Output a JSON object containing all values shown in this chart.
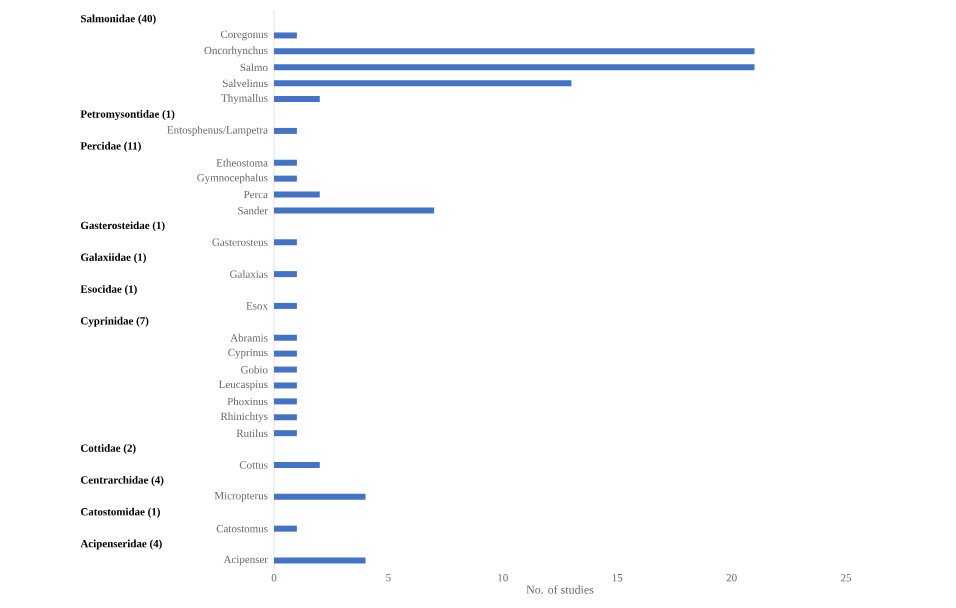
{
  "chart_data": {
    "type": "bar",
    "orientation": "horizontal",
    "xlabel": "No. of studies",
    "categories": [
      null,
      "Coregonus",
      "Oncorhynchus",
      "Salmo",
      "Salvelinus",
      "Thymallus",
      null,
      "Entosphenus/Lampetra",
      null,
      "Etheostoma",
      "Gymnocephalus",
      "Perca",
      "Sander",
      null,
      "Gasterosteus",
      null,
      "Galaxias",
      null,
      "Esox",
      null,
      "Abramis",
      "Cyprinus",
      "Gobio",
      "Leucaspius",
      "Phoxinus",
      "Rhinichtys",
      "Rutilus",
      null,
      "Cottus",
      null,
      "Micropterus",
      null,
      "Catostomus",
      null,
      "Acipenser"
    ],
    "values": [
      null,
      1,
      21,
      21,
      13,
      2,
      null,
      1,
      null,
      1,
      1,
      2,
      7,
      null,
      1,
      null,
      1,
      null,
      1,
      null,
      1,
      1,
      1,
      1,
      1,
      1,
      1,
      null,
      2,
      null,
      4,
      null,
      1,
      null,
      4
    ],
    "annotations": [
      "Salmonidae (40)",
      "Petromysontidae (1)",
      "Percidae (11)",
      "Gasterosteidae (1)",
      "Galaxiidae (1)",
      "Esocidae (1)",
      "Cyprinidae (7)",
      "Cottidae (2)",
      "Centrarchidae (4)",
      "Catostomidae (1)",
      "Acipenseridae (4)"
    ],
    "color": "#4472c4",
    "xlim": [
      0,
      25
    ],
    "xticks": [
      0,
      5,
      10,
      15,
      20,
      25
    ],
    "grid": false
  }
}
